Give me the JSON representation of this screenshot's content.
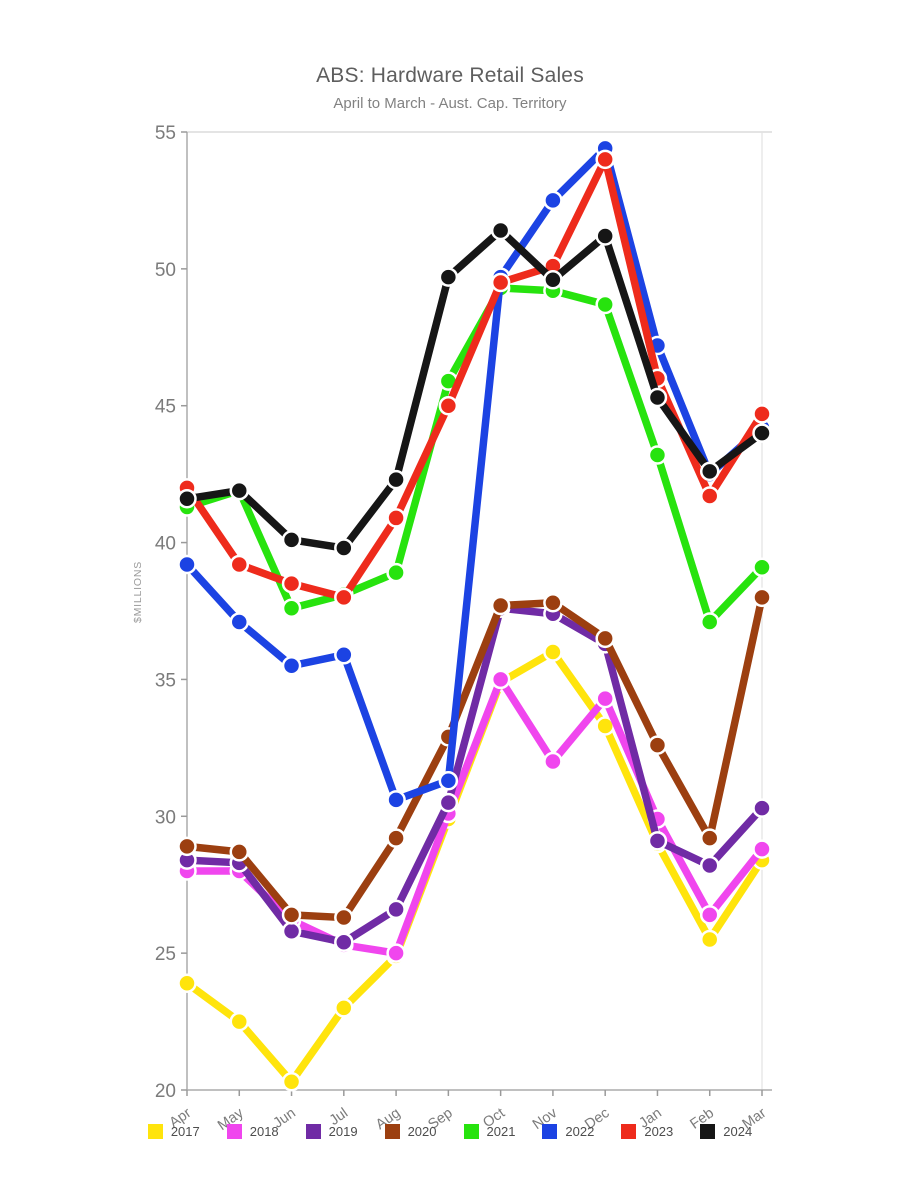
{
  "header": {
    "title": "ABS: Hardware Retail Sales",
    "subtitle": "April to March - Aust. Cap. Territory"
  },
  "chart_data": {
    "type": "line",
    "title": "ABS: Hardware Retail Sales",
    "subtitle": "April to March - Aust. Cap. Territory",
    "xlabel": "",
    "ylabel": "$MILLIONS",
    "ylim": [
      20,
      55
    ],
    "yticks": [
      20,
      25,
      30,
      35,
      40,
      45,
      50,
      55
    ],
    "grid": false,
    "legend_position": "bottom",
    "marker_style": "circle-white-ring",
    "categories": [
      "Apr",
      "May",
      "Jun",
      "Jul",
      "Aug",
      "Sep",
      "Oct",
      "Nov",
      "Dec",
      "Jan",
      "Feb",
      "Mar"
    ],
    "series": [
      {
        "name": "2017",
        "color": "#FFE40C",
        "values": [
          23.9,
          22.5,
          20.3,
          23.0,
          24.9,
          29.9,
          34.9,
          36.0,
          33.3,
          29.0,
          25.5,
          28.4
        ]
      },
      {
        "name": "2018",
        "color": "#F046EE",
        "values": [
          28.0,
          28.0,
          26.2,
          25.3,
          25.0,
          30.1,
          35.0,
          32.0,
          34.3,
          29.9,
          26.4,
          28.8
        ]
      },
      {
        "name": "2019",
        "color": "#702BA5",
        "values": [
          28.4,
          28.3,
          25.8,
          25.4,
          26.6,
          30.5,
          37.6,
          37.4,
          36.3,
          29.1,
          28.2,
          30.3
        ]
      },
      {
        "name": "2020",
        "color": "#9C3F10",
        "values": [
          28.9,
          28.7,
          26.4,
          26.3,
          29.2,
          32.9,
          37.7,
          37.8,
          36.5,
          32.6,
          29.2,
          38.0
        ]
      },
      {
        "name": "2021",
        "color": "#27E30E",
        "values": [
          41.3,
          41.9,
          37.6,
          38.1,
          38.9,
          45.9,
          49.3,
          49.2,
          48.7,
          43.2,
          37.1,
          39.1
        ]
      },
      {
        "name": "2022",
        "color": "#1C43E3",
        "values": [
          39.2,
          37.1,
          35.5,
          35.9,
          30.6,
          31.3,
          49.7,
          52.5,
          54.4,
          47.2,
          42.5,
          44.2
        ]
      },
      {
        "name": "2023",
        "color": "#EE2B1C",
        "values": [
          42.0,
          39.2,
          38.5,
          38.0,
          40.9,
          45.0,
          49.5,
          50.1,
          54.0,
          46.0,
          41.7,
          44.7
        ]
      },
      {
        "name": "2024",
        "color": "#161616",
        "values": [
          41.6,
          41.9,
          40.1,
          39.8,
          42.3,
          49.7,
          51.4,
          49.6,
          51.2,
          45.3,
          42.6,
          44.0
        ]
      }
    ]
  }
}
